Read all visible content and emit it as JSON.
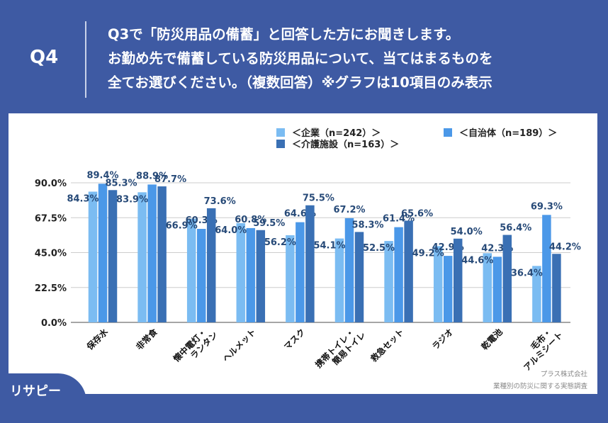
{
  "header": {
    "q_label": "Q4",
    "title": "Q3で「防災用品の備蓄」と回答した方にお聞きします。\nお勤め先で備蓄している防災用品について、当てはまるものを\n全てお選びください。（複数回答）※グラフは10項目のみ表示"
  },
  "colors": {
    "background": "#3e5aa3",
    "s1": "#7bbcf2",
    "s2": "#4b98e8",
    "s3": "#3a70b4"
  },
  "chart_data": {
    "type": "bar",
    "categories": [
      "保存水",
      "非常食",
      "懐中電灯・\nランタン",
      "ヘルメット",
      "マスク",
      "携帯トイレ・\n簡易トイレ",
      "救急セット",
      "ラジオ",
      "乾電池",
      "毛布・\nアルミシート"
    ],
    "series": [
      {
        "name": "＜企業（n=242）＞",
        "values": [
          84.3,
          83.9,
          66.9,
          64.0,
          56.2,
          54.1,
          52.5,
          49.2,
          44.6,
          36.4
        ]
      },
      {
        "name": "＜自治体（n=189）＞",
        "values": [
          89.4,
          88.9,
          60.3,
          60.8,
          64.6,
          67.2,
          61.4,
          42.9,
          42.3,
          69.3
        ]
      },
      {
        "name": "＜介護施設（n=163）＞",
        "values": [
          85.3,
          87.7,
          73.6,
          59.5,
          75.5,
          58.3,
          65.6,
          54.0,
          56.4,
          44.2
        ]
      }
    ],
    "yticks": [
      "0.0%",
      "22.5%",
      "45.0%",
      "67.5%",
      "90.0%"
    ],
    "ylim": [
      0,
      90
    ],
    "grid": true,
    "legend": "top-right"
  },
  "source": {
    "company": "プラス株式会社",
    "survey": "業種別の防災に関する実態調査"
  },
  "logo": {
    "text": "リサピー"
  }
}
